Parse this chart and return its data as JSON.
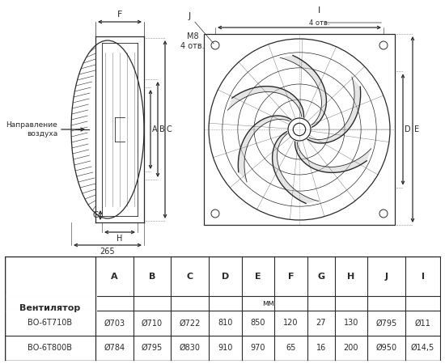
{
  "bg_color": "#ffffff",
  "line_color": "#2a2a2a",
  "table_cols": [
    "Вентилятор",
    "A",
    "B",
    "C",
    "D",
    "E",
    "F",
    "G",
    "H",
    "J",
    "I"
  ],
  "table_row1": [
    "ВО-6Т710В",
    "Ø703",
    "Ø710",
    "Ø722",
    "810",
    "850",
    "120",
    "27",
    "130",
    "Ø795",
    "Ø11"
  ],
  "table_row2": [
    "ВО-6Т800В",
    "Ø784",
    "Ø795",
    "Ø830",
    "910",
    "970",
    "65",
    "16",
    "200",
    "Ø950",
    "Ø14,5"
  ],
  "dim_265": "265",
  "note_m8": "М8\n4 отв.",
  "note_airflow": "Направление\nвоздуха",
  "label_4otv": "4 отв."
}
